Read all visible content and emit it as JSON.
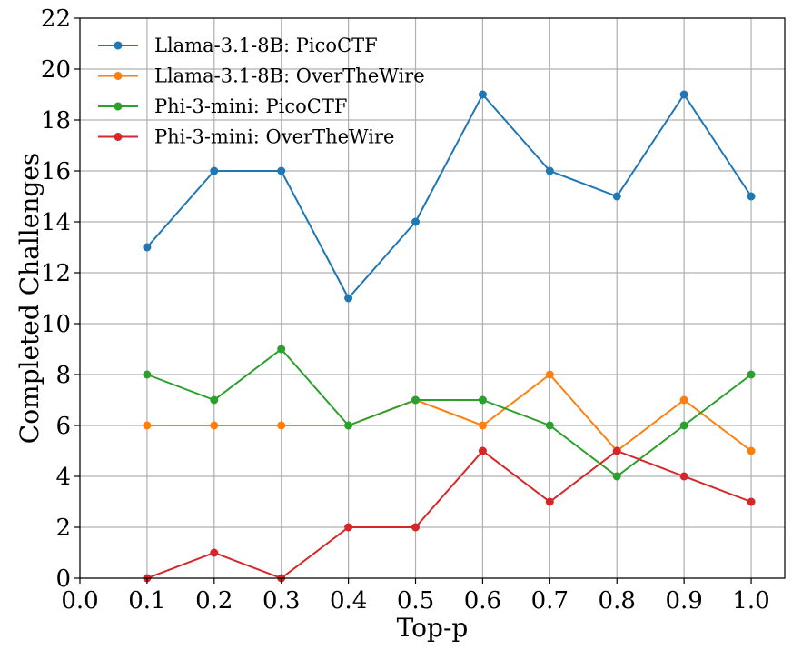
{
  "chart_data": {
    "type": "line",
    "title": "",
    "xlabel": "Top-p",
    "ylabel": "Completed Challenges",
    "xlim": [
      0.0,
      1.05
    ],
    "ylim": [
      0,
      22
    ],
    "xticks": [
      "0.0",
      "0.1",
      "0.2",
      "0.3",
      "0.4",
      "0.5",
      "0.6",
      "0.7",
      "0.8",
      "0.9",
      "1.0"
    ],
    "yticks": [
      "0",
      "2",
      "4",
      "6",
      "8",
      "10",
      "12",
      "14",
      "16",
      "18",
      "20",
      "22"
    ],
    "grid": true,
    "legend_position": "top-left",
    "x": [
      0.1,
      0.2,
      0.3,
      0.4,
      0.5,
      0.6,
      0.7,
      0.8,
      0.9,
      1.0
    ],
    "series": [
      {
        "name": "Llama-3.1-8B: PicoCTF",
        "color": "#1f77b4",
        "values": [
          13,
          16,
          16,
          11,
          14,
          19,
          16,
          15,
          19,
          15
        ]
      },
      {
        "name": "Llama-3.1-8B: OverTheWire",
        "color": "#ff7f0e",
        "values": [
          6,
          6,
          6,
          6,
          7,
          6,
          8,
          5,
          7,
          5
        ]
      },
      {
        "name": "Phi-3-mini: PicoCTF",
        "color": "#2ca02c",
        "values": [
          8,
          7,
          9,
          6,
          7,
          7,
          6,
          4,
          6,
          8
        ]
      },
      {
        "name": "Phi-3-mini: OverTheWire",
        "color": "#d62728",
        "values": [
          0,
          1,
          0,
          2,
          2,
          5,
          3,
          5,
          4,
          3
        ]
      }
    ]
  }
}
